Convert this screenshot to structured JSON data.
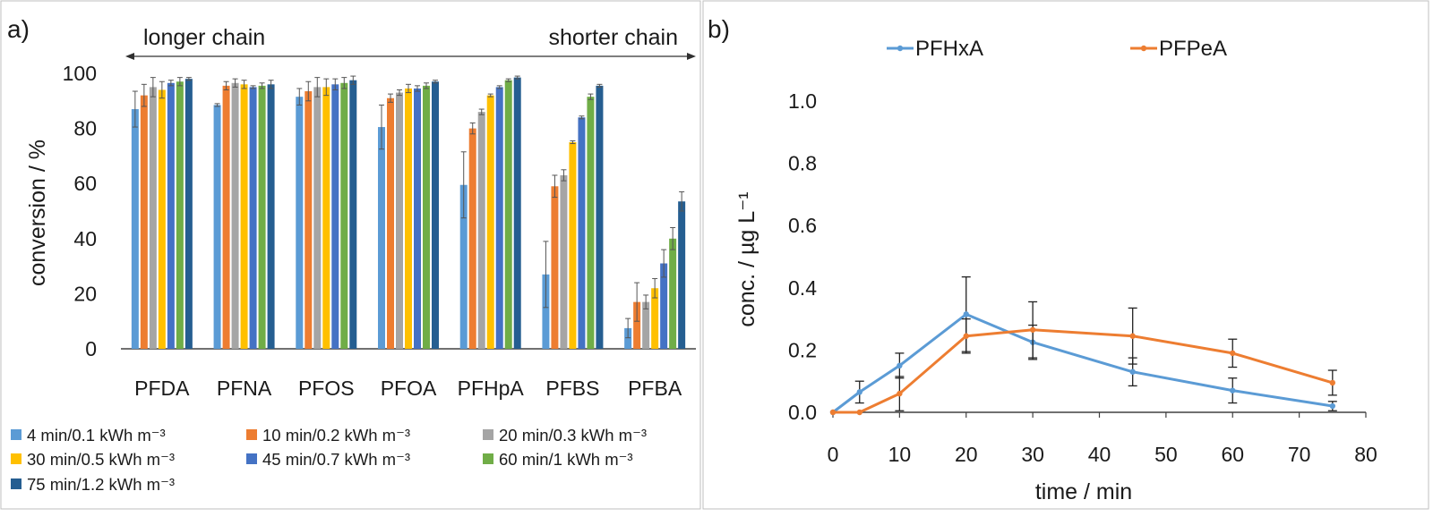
{
  "panels": {
    "a_label": "a)",
    "b_label": "b)"
  },
  "chart_data": [
    {
      "type": "bar",
      "panel": "a)",
      "ylabel": "conversion / %",
      "ylim": [
        0,
        100
      ],
      "yticks": [
        0,
        20,
        40,
        60,
        80,
        100
      ],
      "categories": [
        "PFDA",
        "PFNA",
        "PFOS",
        "PFOA",
        "PFHpA",
        "PFBS",
        "PFBA"
      ],
      "annotations": {
        "left": "longer chain",
        "right": "shorter chain"
      },
      "legend_position": "bottom",
      "series": [
        {
          "name": "4 min/0.1 kWh m⁻³",
          "color": "#5B9BD5",
          "values": [
            87,
            88.5,
            91.5,
            80.5,
            59.5,
            27,
            7.5
          ],
          "errors": [
            6.5,
            0.5,
            3,
            8,
            12,
            12,
            3.5
          ]
        },
        {
          "name": "10 min/0.2 kWh m⁻³",
          "color": "#ED7D31",
          "values": [
            92,
            95.5,
            93.5,
            91,
            80,
            59,
            17
          ],
          "errors": [
            4,
            1.5,
            3.5,
            1.5,
            2,
            4,
            7
          ]
        },
        {
          "name": "20 min/0.3 kWh m⁻³",
          "color": "#A5A5A5",
          "values": [
            95,
            96.5,
            95,
            93,
            86,
            63,
            17
          ],
          "errors": [
            3.5,
            1.5,
            3.5,
            1,
            1,
            2,
            2.5
          ]
        },
        {
          "name": "30 min/0.5 kWh m⁻³",
          "color": "#FFC000",
          "values": [
            94,
            96,
            95,
            94.5,
            92,
            75,
            22
          ],
          "errors": [
            3,
            1.5,
            3,
            1.5,
            0.5,
            0.5,
            3.5
          ]
        },
        {
          "name": "45 min/0.7 kWh m⁻³",
          "color": "#4472C4",
          "values": [
            96.5,
            95,
            96,
            94.5,
            95,
            84,
            31
          ],
          "errors": [
            1,
            0.5,
            2,
            1,
            0.5,
            0.5,
            5
          ]
        },
        {
          "name": "60 min/1 kWh m⁻³",
          "color": "#70AD47",
          "values": [
            97,
            95.5,
            96.5,
            95.5,
            97.5,
            91.5,
            40
          ],
          "errors": [
            1.5,
            1,
            2,
            1,
            0.5,
            1,
            4
          ]
        },
        {
          "name": "75 min/1.2 kWh m⁻³",
          "color": "#255E91",
          "values": [
            98,
            96,
            97.5,
            97,
            98.5,
            95.5,
            53.5
          ],
          "errors": [
            0.5,
            1.5,
            1.5,
            0.5,
            0.5,
            0.5,
            3.5
          ]
        }
      ]
    },
    {
      "type": "line",
      "panel": "b)",
      "xlabel": "time / min",
      "ylabel": "conc. / µg L⁻¹",
      "xlim": [
        0,
        80
      ],
      "ylim": [
        0,
        1.0
      ],
      "xticks": [
        0,
        10,
        20,
        30,
        40,
        50,
        60,
        70,
        80
      ],
      "yticks": [
        "0.0",
        "0.2",
        "0.4",
        "0.6",
        "0.8",
        "1.0"
      ],
      "legend_position": "top",
      "series": [
        {
          "name": "PFHxA",
          "color": "#5B9BD5",
          "x": [
            0,
            4,
            10,
            20,
            30,
            45,
            60,
            75
          ],
          "y": [
            0,
            0.065,
            0.15,
            0.315,
            0.225,
            0.13,
            0.07,
            0.02
          ],
          "errors": [
            0,
            0.035,
            0.04,
            0.12,
            0.055,
            0.045,
            0.04,
            0.015
          ]
        },
        {
          "name": "PFPeA",
          "color": "#ED7D31",
          "x": [
            0,
            4,
            10,
            20,
            30,
            45,
            60,
            75
          ],
          "y": [
            0,
            0,
            0.06,
            0.245,
            0.265,
            0.245,
            0.19,
            0.095
          ],
          "errors": [
            0,
            0,
            0.055,
            0.055,
            0.09,
            0.09,
            0.045,
            0.04
          ]
        }
      ]
    }
  ]
}
